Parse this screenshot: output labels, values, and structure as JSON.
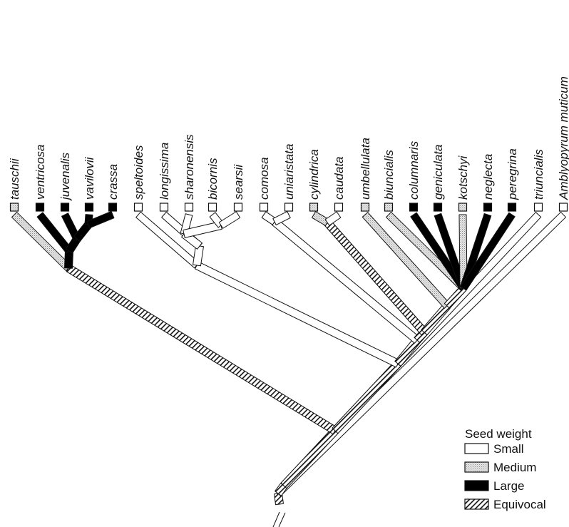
{
  "colors": {
    "small": "#ffffff",
    "medium": "#cfcfcf",
    "large": "#000000",
    "equivocal_fill": "#ffffff",
    "equivocal_hatch": "#111111",
    "stroke": "#111111"
  },
  "taxa": [
    {
      "name": "tauschii",
      "state": "medium"
    },
    {
      "name": "ventricosa",
      "state": "large"
    },
    {
      "name": "juvenalis",
      "state": "large"
    },
    {
      "name": "vavilovii",
      "state": "large"
    },
    {
      "name": "crassa",
      "state": "large"
    },
    {
      "name": "speltoides",
      "state": "small"
    },
    {
      "name": "longissima",
      "state": "small"
    },
    {
      "name": "sharonensis",
      "state": "small"
    },
    {
      "name": "bicornis",
      "state": "small"
    },
    {
      "name": "searsii",
      "state": "small"
    },
    {
      "name": "comosa",
      "state": "small"
    },
    {
      "name": "uniaristata",
      "state": "small"
    },
    {
      "name": "cylindrica",
      "state": "medium"
    },
    {
      "name": "caudata",
      "state": "small"
    },
    {
      "name": "umbellulata",
      "state": "medium"
    },
    {
      "name": "biuncialis",
      "state": "medium"
    },
    {
      "name": "columnaris",
      "state": "large"
    },
    {
      "name": "geniculata",
      "state": "large"
    },
    {
      "name": "kotschyi",
      "state": "medium"
    },
    {
      "name": "neglecta",
      "state": "large"
    },
    {
      "name": "peregrina",
      "state": "large"
    },
    {
      "name": "triuncialis",
      "state": "small"
    },
    {
      "name": "Amblyopyrum muticum",
      "state": "small"
    }
  ],
  "legend": {
    "title": "Seed weight",
    "items": [
      {
        "label": "Small",
        "state": "small"
      },
      {
        "label": "Medium",
        "state": "medium"
      },
      {
        "label": "Large",
        "state": "large"
      },
      {
        "label": "Equivocal",
        "state": "equivocal"
      }
    ]
  }
}
